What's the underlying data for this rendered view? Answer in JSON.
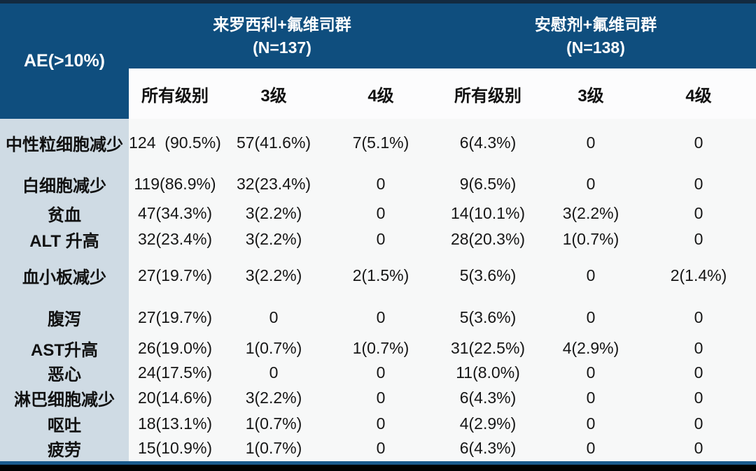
{
  "chart_data": {
    "type": "table",
    "title": "AE(>10%)",
    "corner_header": "AE(>10%)",
    "column_groups": [
      {
        "title": "来罗西利+氟维司群",
        "n": "(N=137)"
      },
      {
        "title": "安慰剂+氟维司群",
        "n": "(N=138)"
      }
    ],
    "sub_headers": [
      "所有级别",
      "3级",
      "4级",
      "所有级别",
      "3级",
      "4级"
    ],
    "rows": [
      {
        "label": "中性粒细胞减少",
        "values": [
          "124  (90.5%)",
          "57(41.6%)",
          "7(5.1%)",
          "6(4.3%)",
          "0",
          "0"
        ]
      },
      {
        "label": "白细胞减少",
        "values": [
          "119(86.9%)",
          "32(23.4%)",
          "0",
          "9(6.5%)",
          "0",
          "0"
        ]
      },
      {
        "label": "贫血",
        "values": [
          "47(34.3%)",
          "3(2.2%)",
          "0",
          "14(10.1%)",
          "3(2.2%)",
          "0"
        ]
      },
      {
        "label": "ALT 升高",
        "values": [
          "32(23.4%)",
          "3(2.2%)",
          "0",
          "28(20.3%)",
          "1(0.7%)",
          "0"
        ]
      },
      {
        "label": "血小板减少",
        "values": [
          "27(19.7%)",
          "3(2.2%)",
          "2(1.5%)",
          "5(3.6%)",
          "0",
          "2(1.4%)"
        ]
      },
      {
        "label": "腹泻",
        "values": [
          "27(19.7%)",
          "0",
          "0",
          "5(3.6%)",
          "0",
          "0"
        ]
      },
      {
        "label": "AST升高",
        "values": [
          "26(19.0%)",
          "1(0.7%)",
          "1(0.7%)",
          "31(22.5%)",
          "4(2.9%)",
          "0"
        ]
      },
      {
        "label": "恶心",
        "values": [
          "24(17.5%)",
          "0",
          "0",
          "11(8.0%)",
          "0",
          "0"
        ]
      },
      {
        "label": "淋巴细胞减少",
        "values": [
          "20(14.6%)",
          "3(2.2%)",
          "0",
          "6(4.3%)",
          "0",
          "0"
        ]
      },
      {
        "label": "呕吐",
        "values": [
          "18(13.1%)",
          "1(0.7%)",
          "0",
          "4(2.9%)",
          "0",
          "0"
        ]
      },
      {
        "label": "疲劳",
        "values": [
          "15(10.9%)",
          "1(0.7%)",
          "0",
          "6(4.3%)",
          "0",
          "0"
        ]
      }
    ],
    "colors": {
      "header_blue": "#0f4e7e",
      "row_label_bg": "#cfdbe4",
      "data_bg": "#f7f8f8",
      "top_strip": "#132a40",
      "bottom_line_blue": "#1a5a8c",
      "bottom_bar_black": "#000000"
    },
    "layout": {
      "grid": "off",
      "legend": "none"
    }
  }
}
